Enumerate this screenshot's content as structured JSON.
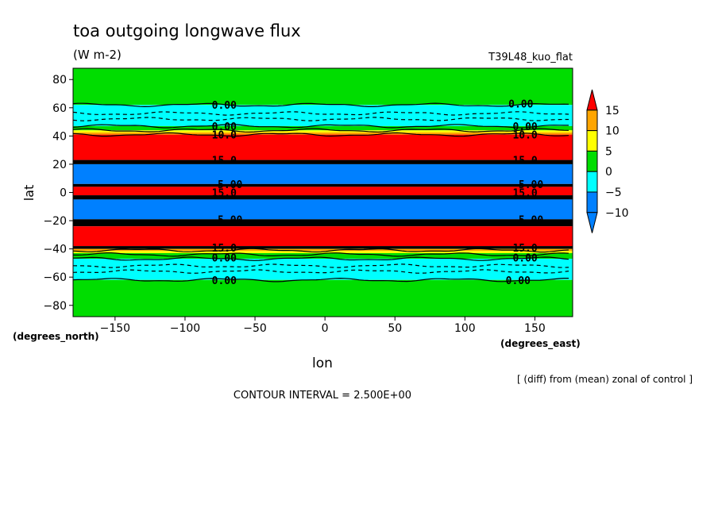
{
  "chart_data": {
    "type": "heatmap",
    "title": "toa outgoing longwave flux",
    "units": "(W m-2)",
    "run_label": "T39L48_kuo_flat",
    "xlabel": "lon",
    "ylabel": "lat",
    "x_unit_label": "(degrees_east)",
    "y_unit_label": "(degrees_north)",
    "xlim": [
      -180,
      177
    ],
    "ylim": [
      -88,
      88
    ],
    "x_ticks": [
      -150,
      -100,
      -50,
      0,
      50,
      100,
      150
    ],
    "y_ticks": [
      80,
      60,
      40,
      20,
      0,
      -20,
      -40,
      -60,
      -80
    ],
    "x_tick_labels": [
      "−150",
      "−100",
      "−50",
      "0",
      "50",
      "100",
      "150"
    ],
    "y_tick_labels": [
      "80",
      "60",
      "40",
      "20",
      "0",
      "−20",
      "−40",
      "−60",
      "−80"
    ],
    "note": "[ (diff) from (mean) zonal of control ]",
    "contour_interval_text": "CONTOUR INTERVAL = 2.500E+00",
    "colorbar": {
      "tick_labels": [
        "15",
        "10",
        "5",
        "0",
        "−5",
        "−10"
      ],
      "levels": [
        {
          "range": "> 15",
          "color": "#ff0000"
        },
        {
          "range": "10 to 15",
          "color": "#ffa500"
        },
        {
          "range": "5 to 10",
          "color": "#ffff00"
        },
        {
          "range": "0 to 5",
          "color": "#00dd00"
        },
        {
          "range": "-5 to 0",
          "color": "#00ffff"
        },
        {
          "range": "-10 to -5",
          "color": "#0080ff"
        },
        {
          "range": "< -10",
          "color": "#0080ff"
        }
      ]
    },
    "colors": {
      "gt15": "#ff0000",
      "c10_15": "#ffa500",
      "c5_10": "#ffff00",
      "c0_5": "#00dd00",
      "cm5_0": "#00ffff",
      "lt_m5": "#0080ff"
    },
    "zonal_bands": [
      {
        "lat_from": 88,
        "lat_to": 62,
        "color": "#00dd00"
      },
      {
        "lat_from": 62,
        "lat_to": 47,
        "color": "#00ffff"
      },
      {
        "lat_from": 47,
        "lat_to": 44,
        "color": "#00dd00"
      },
      {
        "lat_from": 44,
        "lat_to": 42.5,
        "color": "#ffff00"
      },
      {
        "lat_from": 42.5,
        "lat_to": 41,
        "color": "#ffa500"
      },
      {
        "lat_from": 41,
        "lat_to": 23,
        "color": "#ff0000"
      },
      {
        "lat_from": 23,
        "lat_to": 20,
        "color": "#000000"
      },
      {
        "lat_from": 20,
        "lat_to": 6,
        "color": "#0080ff"
      },
      {
        "lat_from": 6,
        "lat_to": 4,
        "color": "#000000"
      },
      {
        "lat_from": 4,
        "lat_to": -2,
        "color": "#ff0000"
      },
      {
        "lat_from": -2,
        "lat_to": -5,
        "color": "#000000"
      },
      {
        "lat_from": -5,
        "lat_to": -19,
        "color": "#0080ff"
      },
      {
        "lat_from": -19,
        "lat_to": -24,
        "color": "#000000"
      },
      {
        "lat_from": -24,
        "lat_to": -38,
        "color": "#ff0000"
      },
      {
        "lat_from": -38,
        "lat_to": -40,
        "color": "#000000"
      },
      {
        "lat_from": -40,
        "lat_to": -41.5,
        "color": "#ffa500"
      },
      {
        "lat_from": -41.5,
        "lat_to": -43,
        "color": "#ffff00"
      },
      {
        "lat_from": -43,
        "lat_to": -47,
        "color": "#00dd00"
      },
      {
        "lat_from": -47,
        "lat_to": -62,
        "color": "#00ffff"
      },
      {
        "lat_from": -62,
        "lat_to": -88,
        "color": "#00dd00"
      }
    ],
    "contour_lines": [
      {
        "lat": 62,
        "style": "solid"
      },
      {
        "lat": 56,
        "style": "dashed"
      },
      {
        "lat": 52,
        "style": "dashed"
      },
      {
        "lat": 47,
        "style": "solid"
      },
      {
        "lat": 44,
        "style": "solid"
      },
      {
        "lat": 41,
        "style": "solid"
      },
      {
        "lat": -41,
        "style": "solid"
      },
      {
        "lat": -44,
        "style": "solid"
      },
      {
        "lat": -47,
        "style": "solid"
      },
      {
        "lat": -52,
        "style": "dashed"
      },
      {
        "lat": -56,
        "style": "dashed"
      },
      {
        "lat": -62,
        "style": "solid"
      }
    ],
    "contour_labels": [
      {
        "text": "0.00",
        "lon": -72,
        "lat": 62
      },
      {
        "text": "0.00",
        "lon": 140,
        "lat": 63
      },
      {
        "text": "0.00",
        "lon": -72,
        "lat": 47
      },
      {
        "text": "0.00",
        "lon": 143,
        "lat": 47
      },
      {
        "text": "10.0",
        "lon": -72,
        "lat": 41
      },
      {
        "text": "10.0",
        "lon": 143,
        "lat": 41
      },
      {
        "text": "15.0",
        "lon": -72,
        "lat": 23
      },
      {
        "text": "15.0",
        "lon": 143,
        "lat": 23
      },
      {
        "text": "-5.00",
        "lon": -70,
        "lat": 6
      },
      {
        "text": "-5.00",
        "lon": 145,
        "lat": 6
      },
      {
        "text": "15.0",
        "lon": -72,
        "lat": 0
      },
      {
        "text": "15.0",
        "lon": 143,
        "lat": 0
      },
      {
        "text": "-5.00",
        "lon": -70,
        "lat": -19
      },
      {
        "text": "-5.00",
        "lon": 145,
        "lat": -19
      },
      {
        "text": "15.0",
        "lon": -72,
        "lat": -39
      },
      {
        "text": "15.0",
        "lon": 143,
        "lat": -39
      },
      {
        "text": "0.00",
        "lon": -72,
        "lat": -46
      },
      {
        "text": "0.00",
        "lon": 143,
        "lat": -46
      },
      {
        "text": "0.00",
        "lon": -72,
        "lat": -62
      },
      {
        "text": "0.00",
        "lon": 138,
        "lat": -62
      }
    ]
  }
}
